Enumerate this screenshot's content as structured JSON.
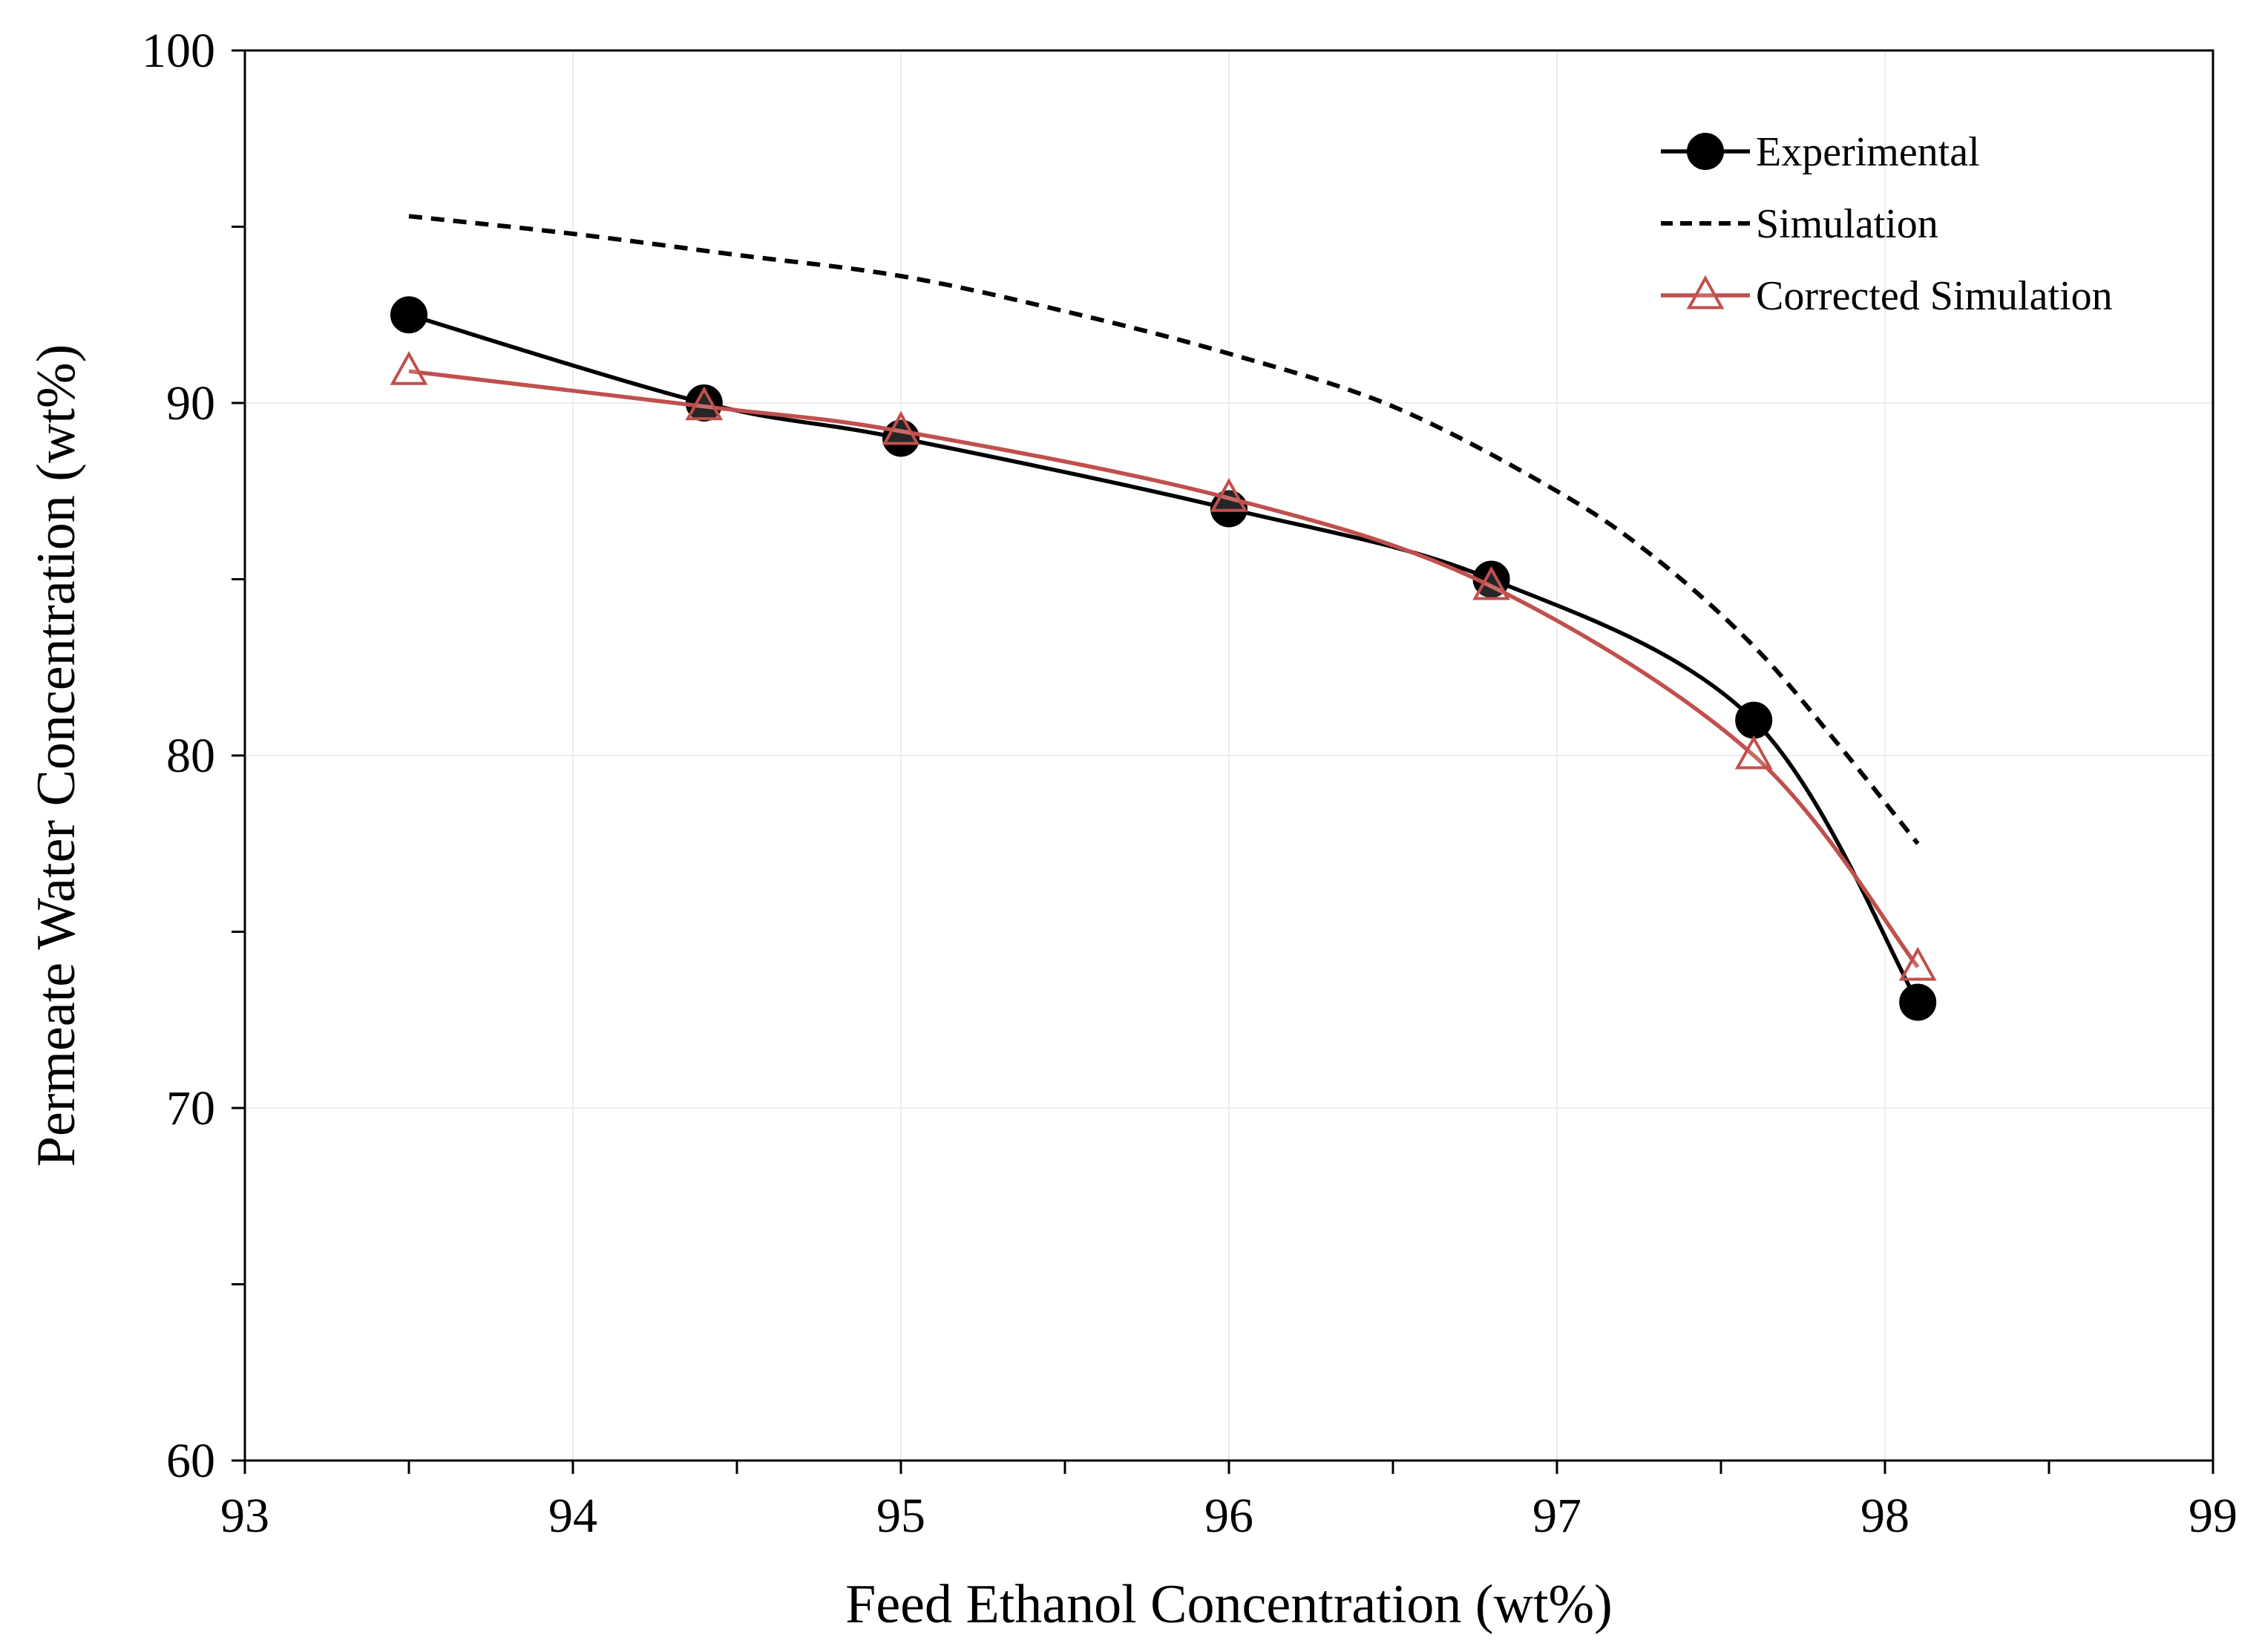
{
  "chart_data": {
    "type": "line",
    "title": "",
    "xlabel": "Feed Ethanol Concentration (wt%)",
    "ylabel": "Permeate Water Concentration (wt%)",
    "xlim": [
      93,
      99
    ],
    "ylim": [
      60,
      100
    ],
    "xticks": [
      93,
      94,
      95,
      96,
      97,
      98,
      99
    ],
    "xtick_labels": [
      "93",
      "94",
      "95",
      "96",
      "97",
      "98",
      "99"
    ],
    "yticks": [
      60,
      70,
      80,
      90,
      100
    ],
    "ytick_labels": [
      "60",
      "70",
      "80",
      "90",
      "100"
    ],
    "grid": true,
    "legend_position": "top-right",
    "series": [
      {
        "name": "Experimental",
        "style": "solid",
        "marker": "circle",
        "color": "#000000",
        "x": [
          93.5,
          94.4,
          95.0,
          96.0,
          96.8,
          97.6,
          98.1
        ],
        "y": [
          92.5,
          90.0,
          89.0,
          87.0,
          85.0,
          81.0,
          73.0
        ]
      },
      {
        "name": "Simulation",
        "style": "dashed",
        "marker": "none",
        "color": "#000000",
        "x": [
          93.5,
          94.0,
          94.5,
          95.0,
          95.5,
          96.0,
          96.5,
          97.0,
          97.3,
          97.6,
          97.85,
          98.1
        ],
        "y": [
          95.3,
          94.8,
          94.2,
          93.6,
          92.6,
          91.4,
          89.9,
          87.5,
          85.6,
          83.1,
          80.4,
          77.5
        ]
      },
      {
        "name": "Corrected Simulation",
        "style": "solid",
        "marker": "triangle",
        "color": "#c0504d",
        "x": [
          93.5,
          94.4,
          95.0,
          96.0,
          96.8,
          97.6,
          98.1
        ],
        "y": [
          90.9,
          89.9,
          89.2,
          87.3,
          84.8,
          80.0,
          74.0
        ]
      }
    ]
  }
}
